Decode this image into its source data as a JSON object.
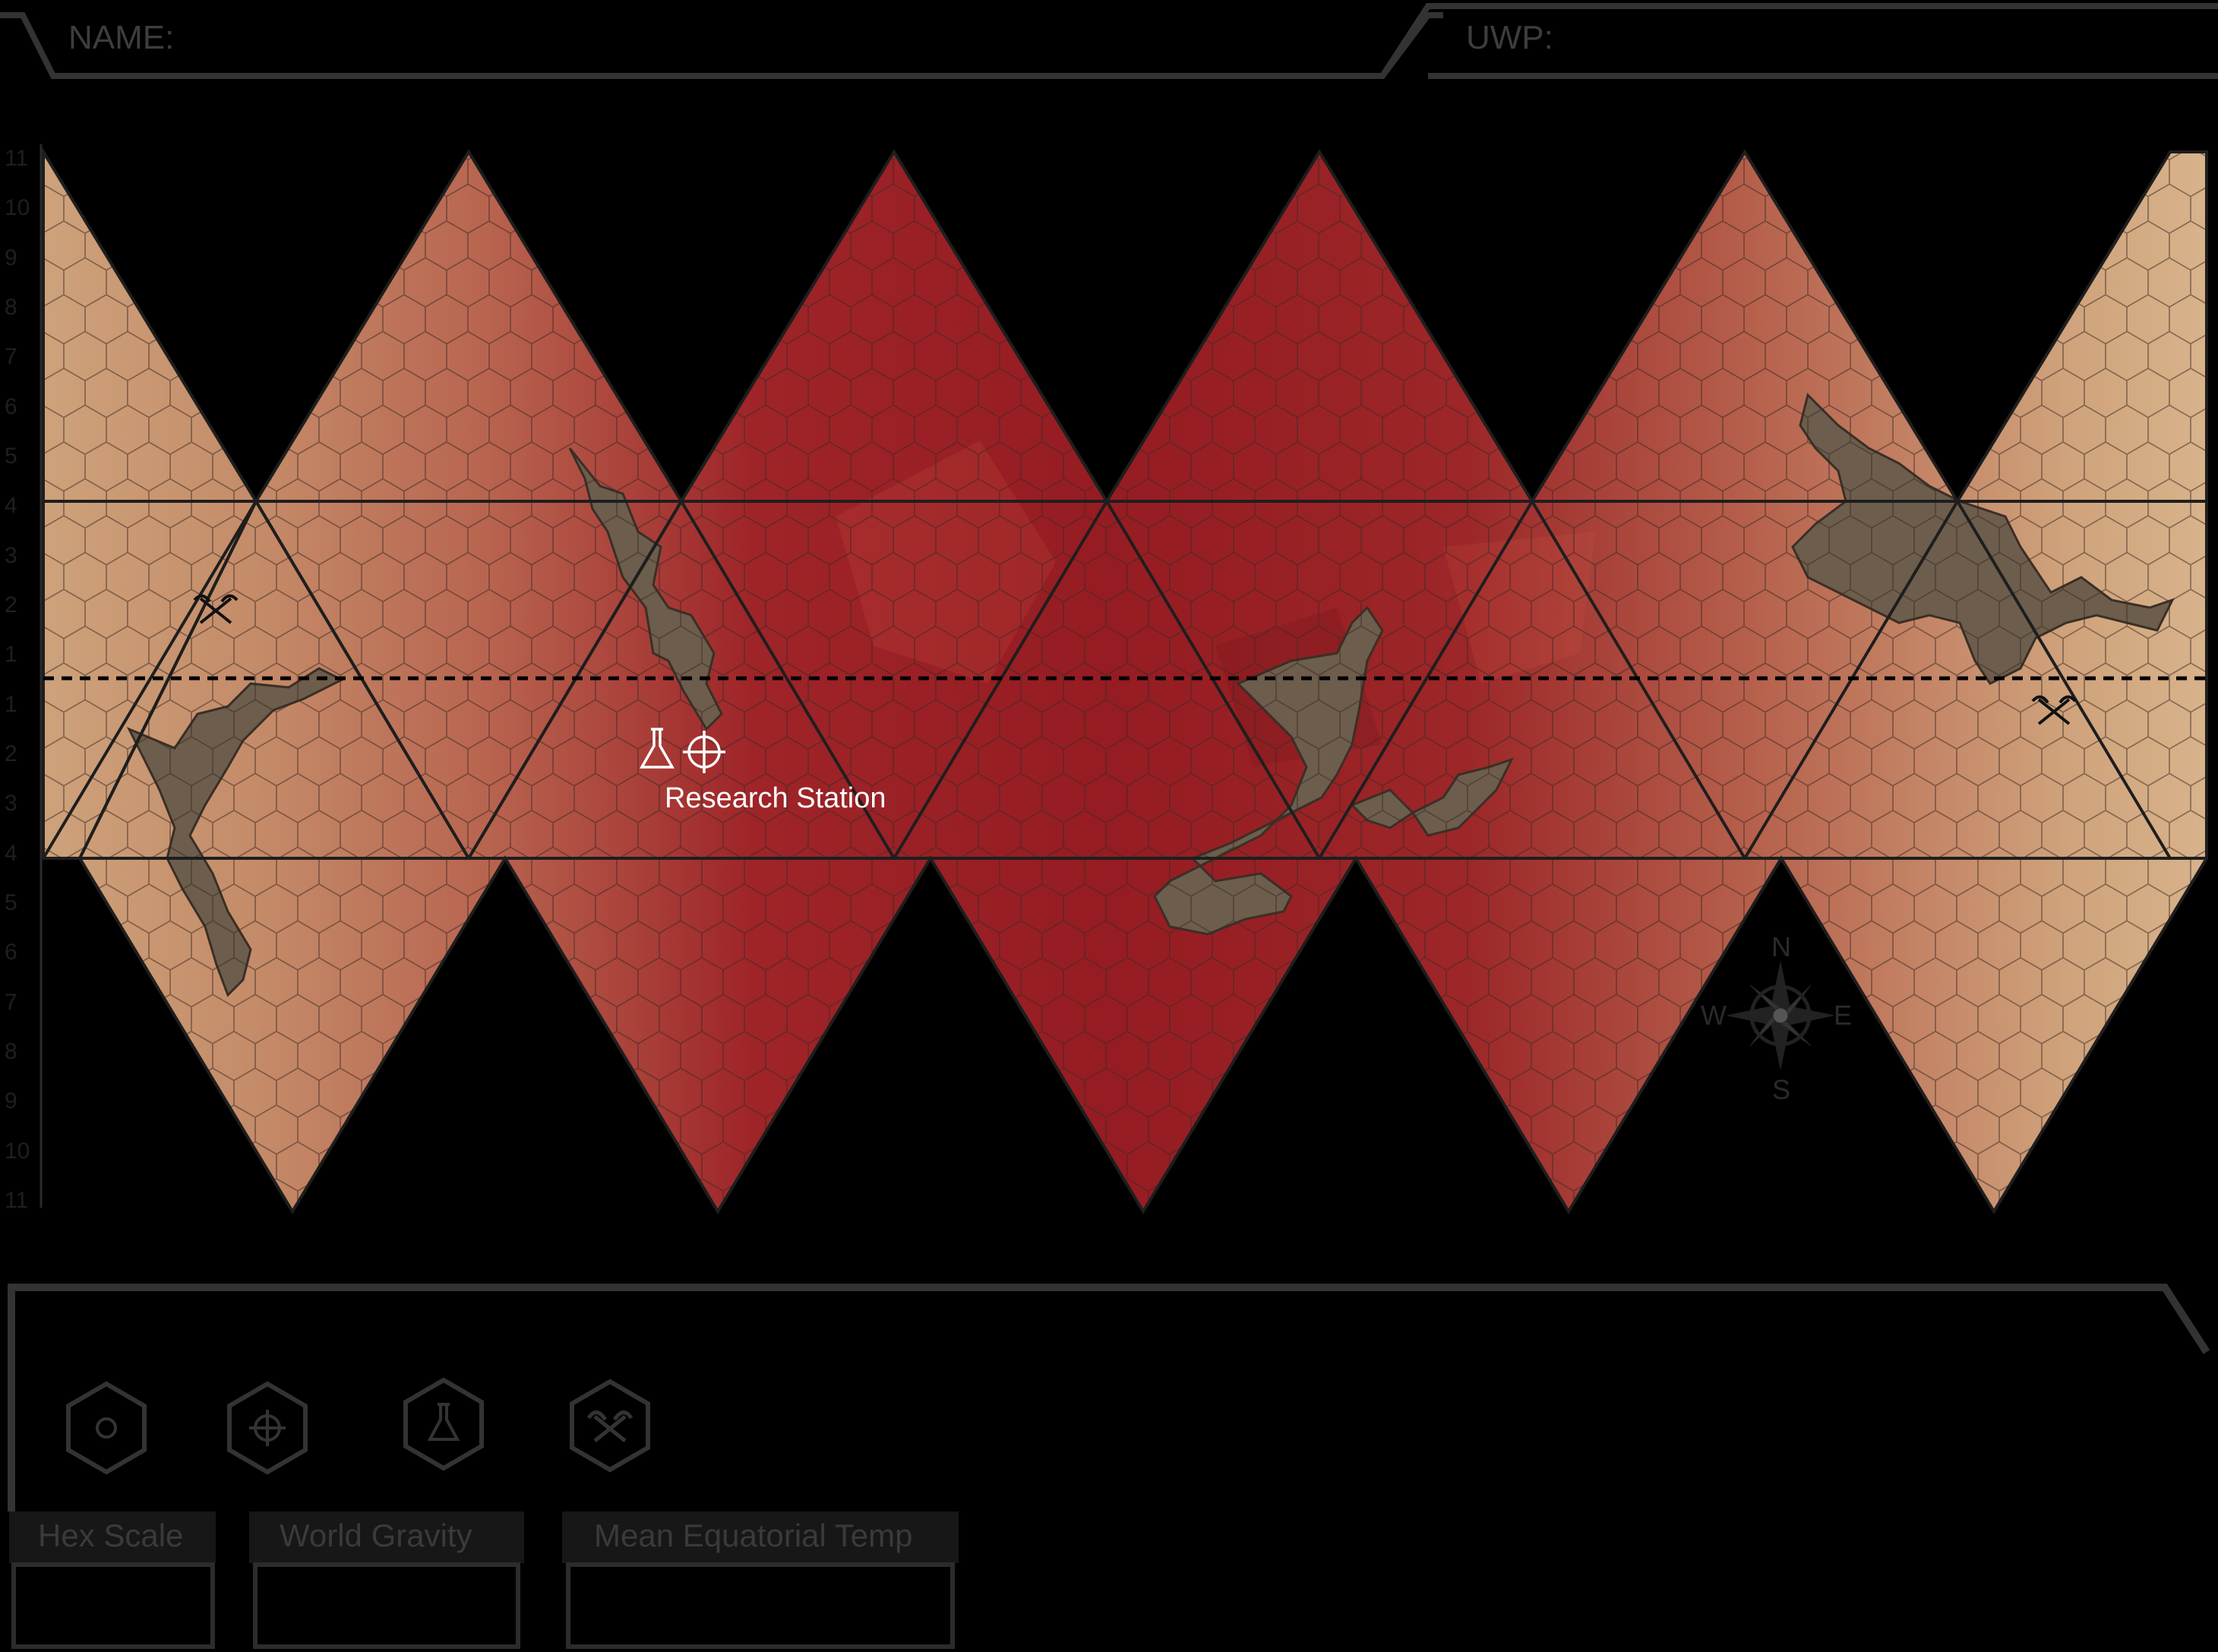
{
  "header": {
    "name_label": "NAME:",
    "uwp_label": "UWP:"
  },
  "latitude_scale": [
    "11",
    "10",
    "9",
    "8",
    "7",
    "6",
    "5",
    "4",
    "3",
    "2",
    "1",
    "1",
    "2",
    "3",
    "4",
    "5",
    "6",
    "7",
    "8",
    "9",
    "10",
    "11"
  ],
  "map": {
    "poi_label": "Research Station",
    "compass": {
      "n": "N",
      "e": "E",
      "s": "S",
      "w": "W"
    },
    "colors": {
      "sand": "#c9a07a",
      "rust": "#b8624e",
      "crimson": "#951c22",
      "grid": "#2a2a2a",
      "water": "#6d5d4c"
    }
  },
  "legend": {
    "icons": [
      "circle-icon",
      "crosshair-icon",
      "flask-icon",
      "crossed-picks-icon"
    ]
  },
  "fields": {
    "hex_scale": {
      "label": "Hex Scale",
      "value": ""
    },
    "world_gravity": {
      "label": "World Gravity",
      "value": ""
    },
    "mean_equatorial_temp": {
      "label": "Mean Equatorial Temp",
      "value": ""
    }
  }
}
